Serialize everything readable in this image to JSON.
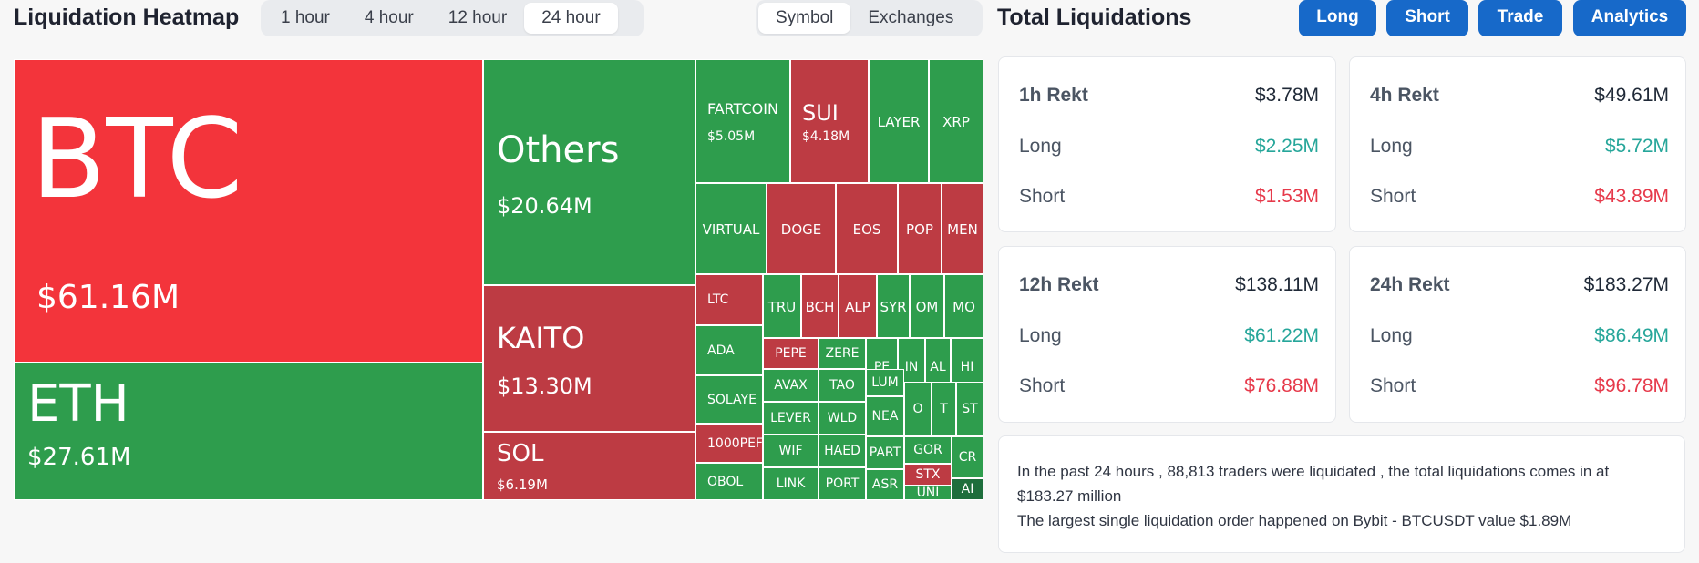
{
  "heatmap_header": {
    "title": "Liquidation Heatmap",
    "timeframes": [
      "1 hour",
      "4 hour",
      "12 hour",
      "24 hour"
    ],
    "active_timeframe": "24 hour",
    "views": [
      "Symbol",
      "Exchanges"
    ],
    "active_view": "Symbol"
  },
  "totals_header": {
    "title": "Total Liquidations",
    "nav": [
      "Long",
      "Short",
      "Trade",
      "Analytics"
    ]
  },
  "colors": {
    "up_green": "#2e9d4d",
    "down_red": "#bd3b43",
    "btc_red": "#f3343b",
    "dark_green": "#1e6e3c",
    "value_green": "#26a69a",
    "value_red": "#e6394a",
    "button_blue": "#1769c9"
  },
  "heatmap": {
    "tiles": [
      {
        "symbol": "BTC",
        "value": "$61.16M",
        "color": "btc"
      },
      {
        "symbol": "ETH",
        "value": "$27.61M",
        "color": "green"
      },
      {
        "symbol": "Others",
        "value": "$20.64M",
        "color": "green"
      },
      {
        "symbol": "KAITO",
        "value": "$13.30M",
        "color": "red"
      },
      {
        "symbol": "SOL",
        "value": "$6.19M",
        "color": "red"
      },
      {
        "symbol": "FARTCOIN",
        "value": "$5.05M",
        "color": "green"
      },
      {
        "symbol": "SUI",
        "value": "$4.18M",
        "color": "red"
      },
      {
        "symbol": "LAYER",
        "value": "",
        "color": "green"
      },
      {
        "symbol": "XRP",
        "value": "",
        "color": "green"
      },
      {
        "symbol": "VIRTUAL",
        "value": "",
        "color": "green"
      },
      {
        "symbol": "DOGE",
        "value": "",
        "color": "red"
      },
      {
        "symbol": "EOS",
        "value": "",
        "color": "red"
      },
      {
        "symbol": "POP",
        "value": "",
        "color": "red"
      },
      {
        "symbol": "MEN",
        "value": "",
        "color": "red"
      },
      {
        "symbol": "LTC",
        "value": "",
        "color": "red"
      },
      {
        "symbol": "ADA",
        "value": "",
        "color": "green"
      },
      {
        "symbol": "SOLAYE",
        "value": "",
        "color": "green"
      },
      {
        "symbol": "1000PEF",
        "value": "",
        "color": "red"
      },
      {
        "symbol": "OBOL",
        "value": "",
        "color": "green"
      },
      {
        "symbol": "TRU",
        "value": "",
        "color": "green"
      },
      {
        "symbol": "BCH",
        "value": "",
        "color": "red"
      },
      {
        "symbol": "ALP",
        "value": "",
        "color": "red"
      },
      {
        "symbol": "SYR",
        "value": "",
        "color": "green"
      },
      {
        "symbol": "OM",
        "value": "",
        "color": "green"
      },
      {
        "symbol": "MO",
        "value": "",
        "color": "green"
      },
      {
        "symbol": "PEPE",
        "value": "",
        "color": "red"
      },
      {
        "symbol": "ZERE",
        "value": "",
        "color": "green"
      },
      {
        "symbol": "PE",
        "value": "",
        "color": "green"
      },
      {
        "symbol": "IN",
        "value": "",
        "color": "green"
      },
      {
        "symbol": "AL",
        "value": "",
        "color": "green"
      },
      {
        "symbol": "HI",
        "value": "",
        "color": "green"
      },
      {
        "symbol": "AVAX",
        "value": "",
        "color": "green"
      },
      {
        "symbol": "TAO",
        "value": "",
        "color": "green"
      },
      {
        "symbol": "LUM",
        "value": "",
        "color": "green"
      },
      {
        "symbol": "O",
        "value": "",
        "color": "green"
      },
      {
        "symbol": "T",
        "value": "",
        "color": "green"
      },
      {
        "symbol": "ST",
        "value": "",
        "color": "green"
      },
      {
        "symbol": "LEVER",
        "value": "",
        "color": "green"
      },
      {
        "symbol": "WLD",
        "value": "",
        "color": "green"
      },
      {
        "symbol": "NEA",
        "value": "",
        "color": "green"
      },
      {
        "symbol": "GOR",
        "value": "",
        "color": "green"
      },
      {
        "symbol": "CR",
        "value": "",
        "color": "green"
      },
      {
        "symbol": "WIF",
        "value": "",
        "color": "green"
      },
      {
        "symbol": "HAED",
        "value": "",
        "color": "green"
      },
      {
        "symbol": "PART",
        "value": "",
        "color": "green"
      },
      {
        "symbol": "STX",
        "value": "",
        "color": "red"
      },
      {
        "symbol": "LINK",
        "value": "",
        "color": "green"
      },
      {
        "symbol": "PORT",
        "value": "",
        "color": "green"
      },
      {
        "symbol": "ASR",
        "value": "",
        "color": "green"
      },
      {
        "symbol": "UNI",
        "value": "",
        "color": "green"
      },
      {
        "symbol": "AI",
        "value": "",
        "color": "darkgreen"
      }
    ]
  },
  "totals": {
    "cards": [
      {
        "period": "1h Rekt",
        "total": "$3.78M",
        "long_label": "Long",
        "long": "$2.25M",
        "short_label": "Short",
        "short": "$1.53M"
      },
      {
        "period": "4h Rekt",
        "total": "$49.61M",
        "long_label": "Long",
        "long": "$5.72M",
        "short_label": "Short",
        "short": "$43.89M"
      },
      {
        "period": "12h Rekt",
        "total": "$138.11M",
        "long_label": "Long",
        "long": "$61.22M",
        "short_label": "Short",
        "short": "$76.88M"
      },
      {
        "period": "24h Rekt",
        "total": "$183.27M",
        "long_label": "Long",
        "long": "$86.49M",
        "short_label": "Short",
        "short": "$96.78M"
      }
    ],
    "summary_line1": "In the past 24 hours , 88,813 traders were liquidated , the total liquidations comes in at $183.27 million",
    "summary_line2": "The largest single liquidation order happened on Bybit - BTCUSDT value $1.89M"
  }
}
